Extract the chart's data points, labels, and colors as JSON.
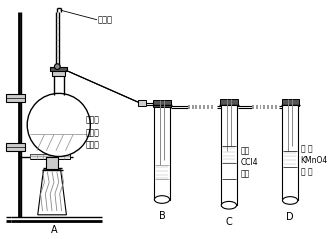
{
  "bg_color": "#ffffff",
  "line_color": "#000000",
  "gray_dark": "#555555",
  "gray_mid": "#888888",
  "gray_light": "#cccccc",
  "label_A": "A",
  "label_B": "B",
  "label_C": "C",
  "label_D": "D",
  "text_thermometer": "温度计",
  "text_mixture": "乙醇和\n浓硫酸\n混合液",
  "text_bromine": "溴的\nCCl4\n溶液",
  "text_kmno4": "酸 性\nKMnO4\n溶 液",
  "figsize": [
    3.32,
    2.39
  ],
  "dpi": 100
}
